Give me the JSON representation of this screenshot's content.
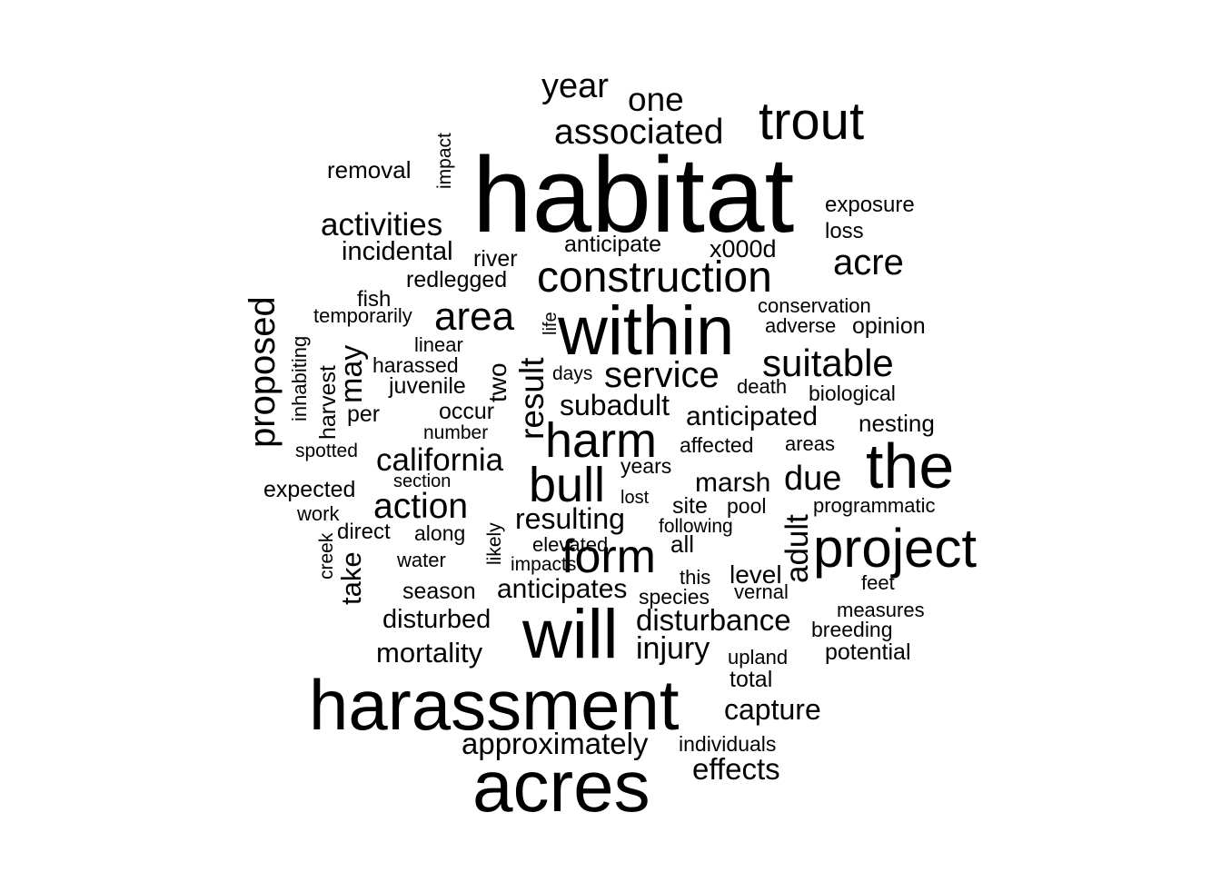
{
  "colors": {
    "background": "#ffffff",
    "text": "#000000"
  },
  "words": [
    "habitat",
    "harassment",
    "acres",
    "within",
    "will",
    "the",
    "project",
    "trout",
    "harm",
    "bull",
    "construction",
    "form",
    "associated",
    "area",
    "proposed",
    "action",
    "california",
    "suitable",
    "service",
    "result",
    "year",
    "one",
    "activities",
    "acre",
    "adult",
    "due",
    "approximately",
    "capture",
    "effects",
    "disturbance",
    "injury",
    "mortality",
    "resulting",
    "anticipates",
    "subadult",
    "anticipated",
    "marsh",
    "incidental",
    "take",
    "may",
    "two",
    "disturbed",
    "removal",
    "impact",
    "river",
    "redlegged",
    "anticipate",
    "x000d",
    "exposure",
    "loss",
    "conservation",
    "adverse",
    "opinion",
    "fish",
    "temporarily",
    "inhabiting",
    "harvest",
    "life",
    "linear",
    "harassed",
    "juvenile",
    "days",
    "death",
    "biological",
    "per",
    "occur",
    "number",
    "nesting",
    "spotted",
    "affected",
    "areas",
    "expected",
    "section",
    "years",
    "work",
    "lost",
    "site",
    "pool",
    "programmatic",
    "direct",
    "along",
    "creek",
    "following",
    "elevated",
    "all",
    "water",
    "impacts",
    "this",
    "level",
    "feet",
    "season",
    "species",
    "vernal",
    "measures",
    "breeding",
    "upland",
    "potential",
    "total",
    "individuals",
    "likely"
  ]
}
